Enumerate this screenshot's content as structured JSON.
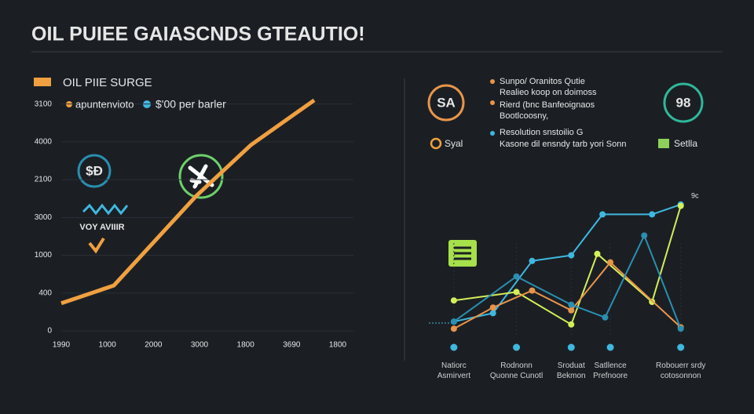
{
  "title": "OIL PUIEE GAIASCNDS GTEAUTIO!",
  "chart_data": [
    {
      "type": "line",
      "legend": "OIL PIIE SURGE",
      "annotations": [
        "apuntenvioto",
        "$'00 per barler",
        "$Ð",
        "VOY AVIIIR"
      ],
      "xlim": [
        0,
        6
      ],
      "xticks": [
        {
          "value": 0,
          "label": "1990"
        },
        {
          "value": 1,
          "label": "1000"
        },
        {
          "value": 2,
          "label": "2000"
        },
        {
          "value": 3,
          "label": "3000"
        },
        {
          "value": 4,
          "label": "1800"
        },
        {
          "value": 5,
          "label": "3690"
        },
        {
          "value": 6,
          "label": "1800"
        }
      ],
      "ylim": [
        0,
        6200
      ],
      "yticks": [
        0,
        {
          "value": 1000,
          "label": "400"
        },
        {
          "value": 2000,
          "label": "1000"
        },
        {
          "value": 3000,
          "label": "3000"
        },
        {
          "value": 4000,
          "label": "2100"
        },
        {
          "value": 5000,
          "label": "4000"
        },
        {
          "value": 6000,
          "label": "3100"
        }
      ],
      "grid": true,
      "series": [
        {
          "color": "#f0a040",
          "x": [
            0,
            1.14,
            2.93,
            4.12,
            5.49
          ],
          "values": [
            730,
            1200,
            3570,
            4920,
            6100
          ]
        }
      ]
    },
    {
      "type": "line",
      "badges": [
        "SA",
        "98"
      ],
      "legend": [
        "Syal",
        "Setlla"
      ],
      "annotations": [
        "Sunpo/ Oranitos Qutie",
        "Realieo koop on doimoss",
        "Rierd (bnc Banfeoignaos",
        "Bootlcoosny,",
        "Resolution snstoilio G",
        "Kasone dil ensndy tarb yori Sonn",
        "9c"
      ],
      "xlim": [
        0,
        100
      ],
      "xticks": [
        {
          "value": 9,
          "label": "Natiorc\nAsmirvert"
        },
        {
          "value": 33,
          "label": "Rodnonn\nQuonne Cunotl"
        },
        {
          "value": 54,
          "label": "Sroduat\nBekmon"
        },
        {
          "value": 69,
          "label": "Satllence\nPrefnoore"
        },
        {
          "value": 96,
          "label": "Robouerr srdy\ncotosonnon"
        }
      ],
      "ylim": [
        0,
        100
      ],
      "series": [
        {
          "color": "#3fb8e0",
          "x": [
            9,
            24,
            39,
            54,
            66,
            85,
            96
          ],
          "values": [
            11,
            17,
            54,
            58,
            87,
            87,
            94
          ]
        },
        {
          "color": "#d4ee5a",
          "x": [
            9,
            33,
            54,
            64,
            85,
            96
          ],
          "values": [
            26,
            32,
            9,
            59,
            25,
            93
          ]
        },
        {
          "color": "#e8954a",
          "x": [
            9,
            24,
            39,
            54,
            69,
            96
          ],
          "values": [
            6,
            21,
            33,
            19,
            53,
            7
          ]
        },
        {
          "color": "#2a8fb0",
          "x": [
            9,
            33,
            54,
            67,
            82,
            96
          ],
          "values": [
            11,
            43,
            23,
            14,
            72,
            6
          ]
        }
      ]
    }
  ]
}
